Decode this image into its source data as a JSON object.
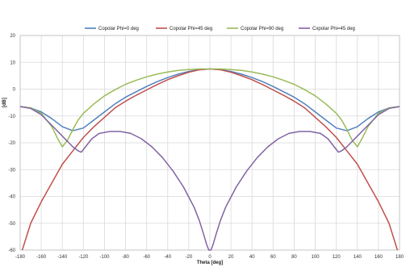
{
  "chart_data": {
    "type": "line",
    "title": "",
    "xlabel": "Theta [deg]",
    "ylabel": "[dB]",
    "xlim": [
      -180,
      180
    ],
    "ylim": [
      -60,
      20
    ],
    "xticks": [
      -180,
      -160,
      -140,
      -120,
      -100,
      -80,
      -60,
      -40,
      -20,
      0,
      20,
      40,
      60,
      80,
      100,
      120,
      140,
      160,
      180
    ],
    "yticks": [
      20,
      10,
      0,
      -10,
      -20,
      -30,
      -40,
      -50,
      -60
    ],
    "grid": true,
    "legend_position": "top",
    "series": [
      {
        "name": "Copolar Phi=0 deg",
        "color": "#4f81bd",
        "x": [
          -180,
          -170,
          -160,
          -150,
          -140,
          -130,
          -120,
          -110,
          -100,
          -90,
          -80,
          -70,
          -60,
          -50,
          -40,
          -30,
          -20,
          -10,
          0,
          10,
          20,
          30,
          40,
          50,
          60,
          70,
          80,
          90,
          100,
          110,
          120,
          130,
          140,
          150,
          160,
          170,
          180
        ],
        "y": [
          -6.5,
          -7,
          -8.5,
          -11,
          -14,
          -15.5,
          -14.5,
          -11.5,
          -8.5,
          -5.5,
          -3,
          -1,
          1,
          2.8,
          4.3,
          5.6,
          6.6,
          7.3,
          7.5,
          7.3,
          6.6,
          5.6,
          4.3,
          2.8,
          1,
          -1,
          -3,
          -5.5,
          -8.5,
          -11.5,
          -14.5,
          -15.5,
          -14,
          -11,
          -8.5,
          -7,
          -6.5
        ]
      },
      {
        "name": "Copolar Phi=45 deg",
        "color": "#c0504d",
        "x": [
          -178,
          -170,
          -160,
          -150,
          -140,
          -130,
          -120,
          -110,
          -100,
          -90,
          -80,
          -70,
          -60,
          -50,
          -40,
          -30,
          -20,
          -10,
          0,
          10,
          20,
          30,
          40,
          50,
          60,
          70,
          80,
          90,
          100,
          110,
          120,
          130,
          140,
          150,
          160,
          170,
          178
        ],
        "y": [
          -60,
          -50,
          -42,
          -35,
          -28,
          -23,
          -18,
          -14,
          -10.5,
          -7,
          -4.5,
          -2.3,
          -0.3,
          1.7,
          3.5,
          5,
          6.3,
          7.2,
          7.5,
          7.2,
          6.3,
          5,
          3.5,
          1.7,
          -0.3,
          -2.3,
          -4.5,
          -7,
          -10.5,
          -14,
          -18,
          -23,
          -28,
          -35,
          -42,
          -50,
          -60
        ]
      },
      {
        "name": "Copolar Phi=90 deg",
        "color": "#9bbb59",
        "x": [
          -180,
          -170,
          -160,
          -150,
          -145,
          -140,
          -135,
          -130,
          -125,
          -120,
          -110,
          -100,
          -90,
          -80,
          -70,
          -60,
          -50,
          -40,
          -30,
          -20,
          -10,
          0,
          10,
          20,
          30,
          40,
          50,
          60,
          70,
          80,
          90,
          100,
          110,
          120,
          125,
          130,
          135,
          140,
          145,
          150,
          160,
          170,
          180
        ],
        "y": [
          -6.5,
          -7,
          -9,
          -14,
          -18,
          -21.5,
          -19,
          -15,
          -11.5,
          -9,
          -5.5,
          -2.5,
          -0.2,
          1.8,
          3.3,
          4.6,
          5.6,
          6.4,
          7,
          7.3,
          7.5,
          7.5,
          7.5,
          7.3,
          7,
          6.4,
          5.6,
          4.6,
          3.3,
          1.8,
          -0.2,
          -2.5,
          -5.5,
          -9,
          -11.5,
          -15,
          -19,
          -21.5,
          -18,
          -14,
          -9,
          -7,
          -6.5
        ]
      },
      {
        "name": "Cxpolar Phi=45 deg",
        "color": "#8064a2",
        "x": [
          -180,
          -170,
          -160,
          -150,
          -140,
          -130,
          -125,
          -122,
          -118,
          -112,
          -105,
          -95,
          -85,
          -75,
          -65,
          -55,
          -45,
          -35,
          -25,
          -15,
          -10,
          -6,
          -3,
          -1,
          1,
          3,
          6,
          10,
          15,
          25,
          35,
          45,
          55,
          65,
          75,
          85,
          95,
          105,
          112,
          118,
          122,
          125,
          130,
          140,
          150,
          160,
          170,
          180
        ],
        "y": [
          -6.5,
          -7.2,
          -9.5,
          -13.5,
          -17.5,
          -21.5,
          -23,
          -23.5,
          -21.5,
          -18.5,
          -16.5,
          -15.8,
          -15.8,
          -16.5,
          -18.5,
          -21.5,
          -25.5,
          -30.5,
          -36.5,
          -44,
          -49,
          -54,
          -58,
          -60,
          -60,
          -58,
          -54,
          -49,
          -44,
          -36.5,
          -30.5,
          -25.5,
          -21.5,
          -18.5,
          -16.5,
          -15.8,
          -15.8,
          -16.5,
          -18.5,
          -21.5,
          -23.5,
          -23,
          -21.5,
          -17.5,
          -13.5,
          -9.5,
          -7.2,
          -6.5
        ]
      }
    ]
  }
}
